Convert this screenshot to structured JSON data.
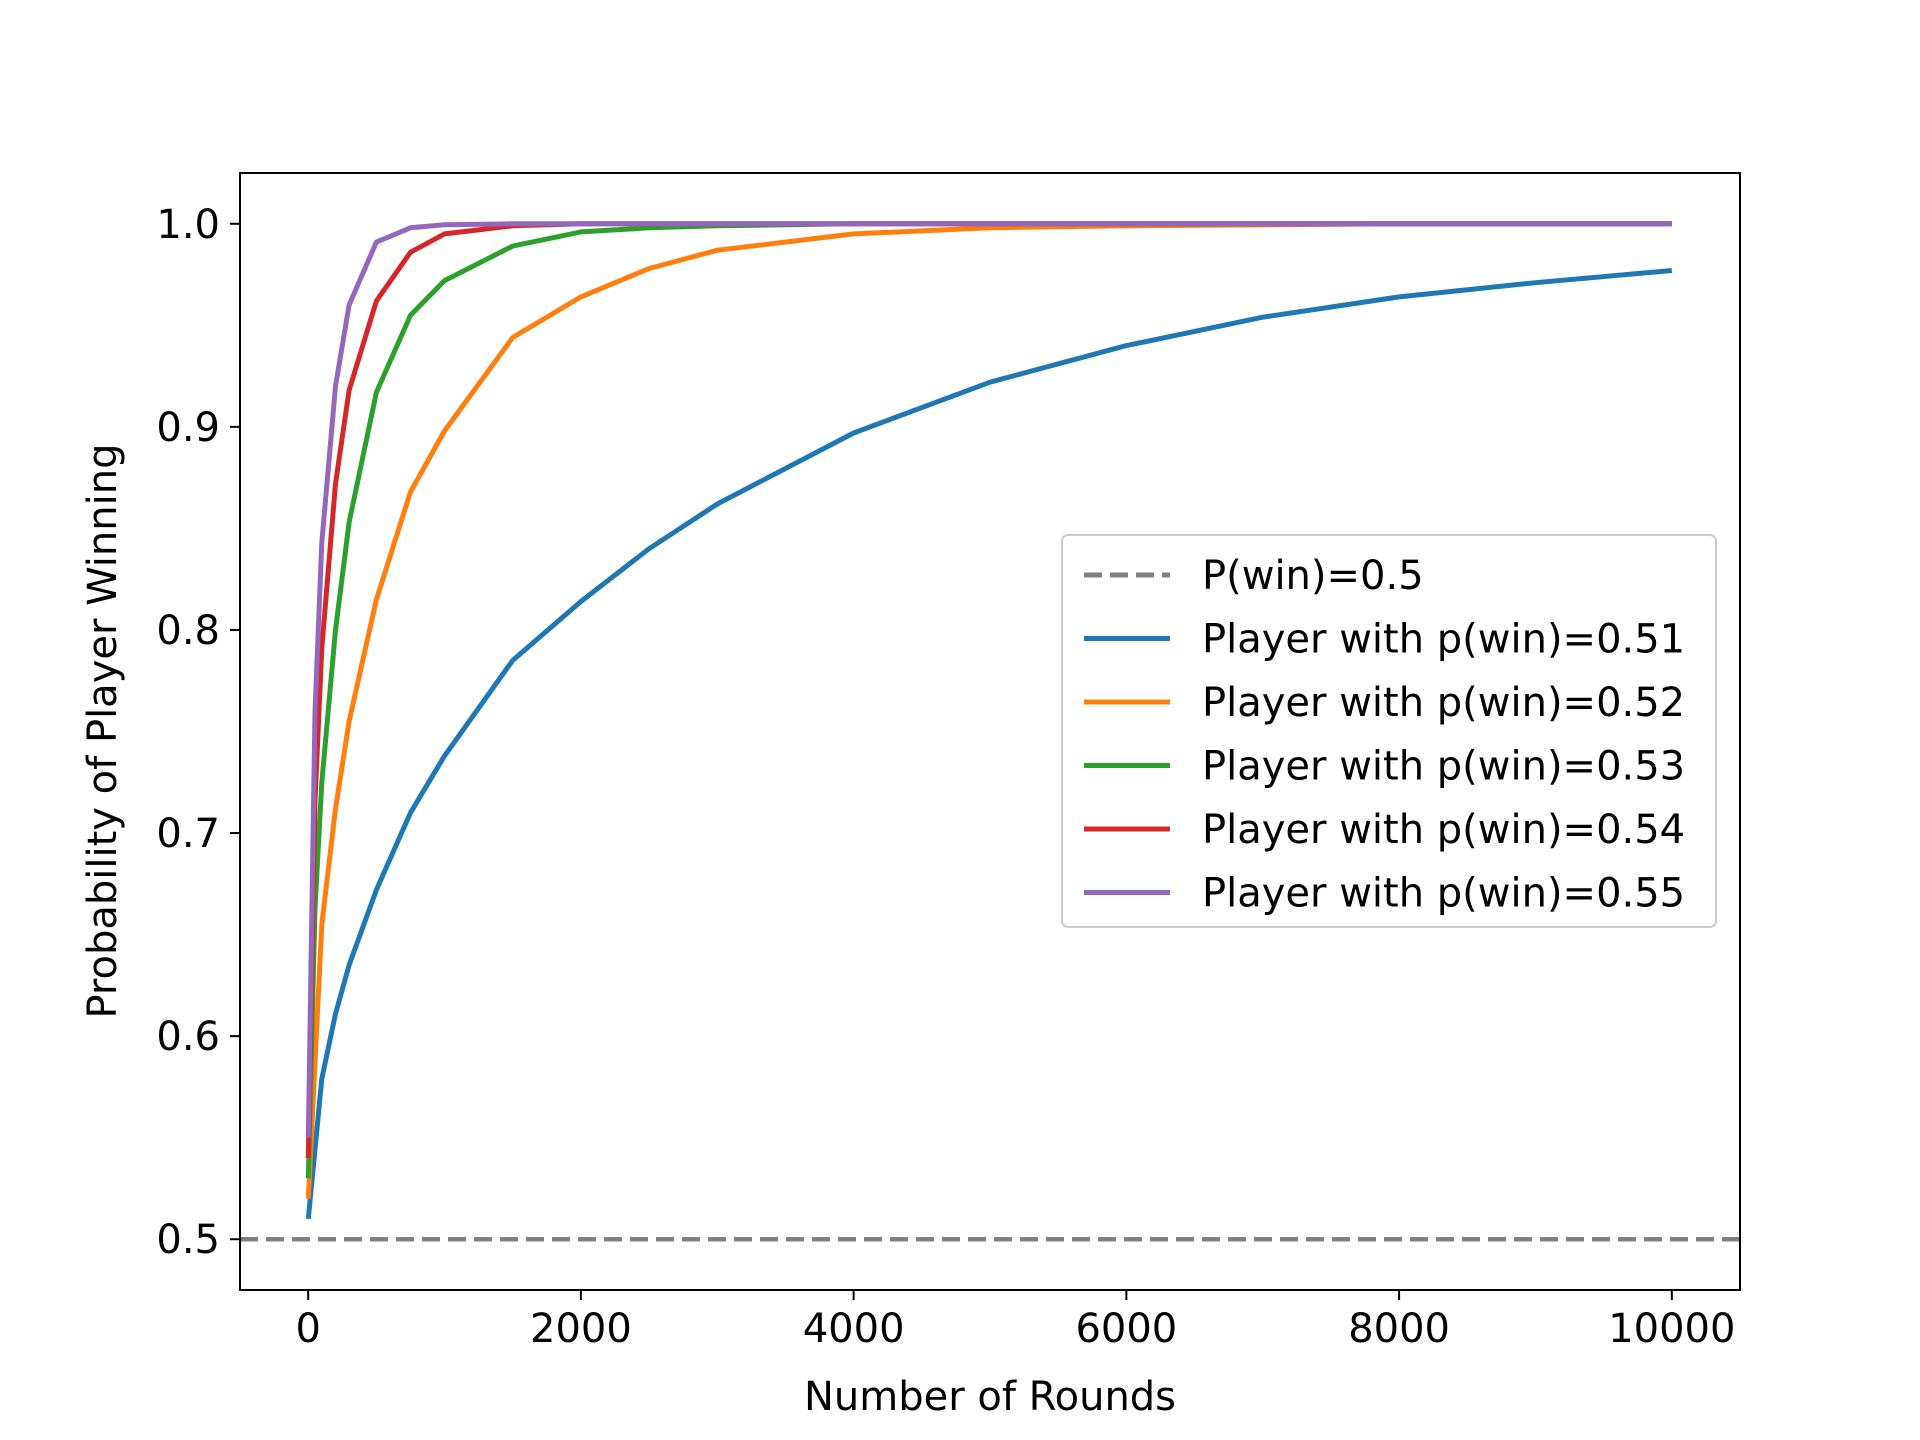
{
  "chart_data": {
    "type": "line",
    "title": "",
    "xlabel": "Number of Rounds",
    "ylabel": "Probability of Player Winning",
    "xlim": [
      -500,
      10500
    ],
    "ylim": [
      0.475,
      1.025
    ],
    "xticks": [
      0,
      2000,
      4000,
      6000,
      8000,
      10000
    ],
    "xtick_labels": [
      "0",
      "2000",
      "4000",
      "6000",
      "8000",
      "10000"
    ],
    "yticks": [
      0.5,
      0.6,
      0.7,
      0.8,
      0.9,
      1.0
    ],
    "ytick_labels": [
      "0.5",
      "0.6",
      "0.7",
      "0.8",
      "0.9",
      "1.0"
    ],
    "grid": false,
    "legend_position": "center-right",
    "reference_line": {
      "name": "P(win)=0.5",
      "value": 0.5,
      "style": "dashed",
      "color": "#808080"
    },
    "series": [
      {
        "name": "Player with p(win)=0.51",
        "color": "#1f77b4",
        "x": [
          1,
          100,
          200,
          300,
          500,
          750,
          1000,
          1500,
          2000,
          2500,
          3000,
          4000,
          5000,
          6000,
          7000,
          8000,
          9000,
          10000
        ],
        "y": [
          0.51,
          0.579,
          0.611,
          0.635,
          0.672,
          0.71,
          0.738,
          0.785,
          0.814,
          0.84,
          0.862,
          0.897,
          0.922,
          0.94,
          0.954,
          0.964,
          0.971,
          0.977
        ]
      },
      {
        "name": "Player with p(win)=0.52",
        "color": "#ff7f0e",
        "x": [
          1,
          100,
          200,
          300,
          500,
          750,
          1000,
          1500,
          2000,
          2500,
          3000,
          4000,
          5000,
          6000,
          8000,
          10000
        ],
        "y": [
          0.52,
          0.655,
          0.712,
          0.755,
          0.815,
          0.868,
          0.898,
          0.944,
          0.964,
          0.978,
          0.987,
          0.995,
          0.998,
          0.999,
          1.0,
          1.0
        ]
      },
      {
        "name": "Player with p(win)=0.53",
        "color": "#2ca02c",
        "x": [
          1,
          50,
          100,
          200,
          300,
          500,
          750,
          1000,
          1500,
          2000,
          2500,
          3000,
          4000,
          6000,
          10000
        ],
        "y": [
          0.53,
          0.663,
          0.725,
          0.8,
          0.853,
          0.917,
          0.955,
          0.972,
          0.989,
          0.996,
          0.998,
          0.999,
          1.0,
          1.0,
          1.0
        ]
      },
      {
        "name": "Player with p(win)=0.54",
        "color": "#d62728",
        "x": [
          1,
          50,
          100,
          200,
          300,
          500,
          750,
          1000,
          1500,
          2000,
          3000,
          5000,
          10000
        ],
        "y": [
          0.54,
          0.716,
          0.791,
          0.872,
          0.918,
          0.962,
          0.986,
          0.995,
          0.999,
          1.0,
          1.0,
          1.0,
          1.0
        ]
      },
      {
        "name": "Player with p(win)=0.55",
        "color": "#9467bd",
        "x": [
          1,
          50,
          100,
          200,
          300,
          500,
          750,
          1000,
          1500,
          2000,
          5000,
          10000
        ],
        "y": [
          0.55,
          0.76,
          0.843,
          0.92,
          0.96,
          0.991,
          0.998,
          0.9995,
          1.0,
          1.0,
          1.0,
          1.0
        ]
      }
    ]
  }
}
